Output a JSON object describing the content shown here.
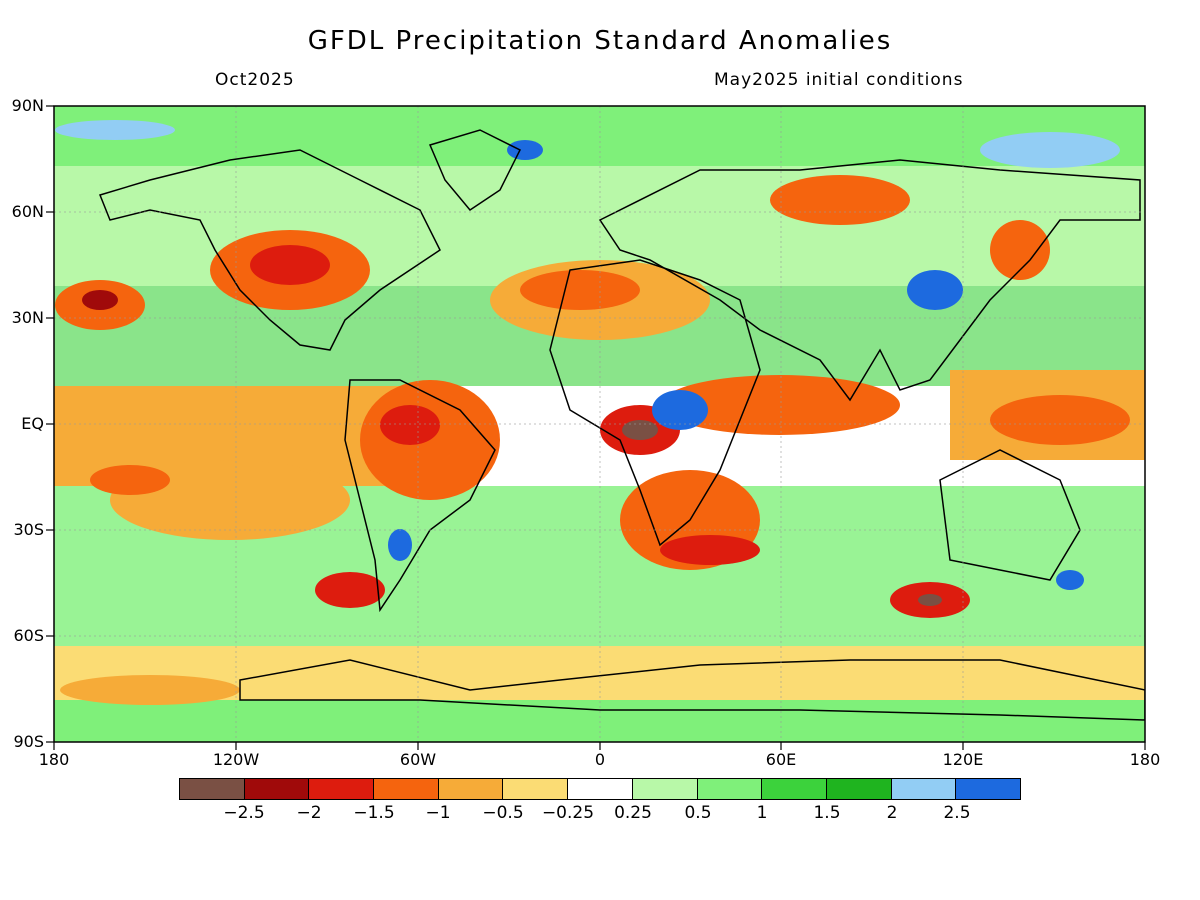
{
  "title": "GFDL Precipitation Standard Anomalies",
  "valid_month": "Oct2025",
  "init_label": "May2025 initial conditions",
  "y_axis_labels": [
    "90N",
    "60N",
    "30N",
    "EQ",
    "30S",
    "60S",
    "90S"
  ],
  "x_axis_labels": [
    "180",
    "120W",
    "60W",
    "0",
    "60E",
    "120E",
    "180"
  ],
  "colorbar": {
    "colors": [
      "#7a5044",
      "#a00a0a",
      "#dd1c0e",
      "#f5640e",
      "#f6ab38",
      "#fbdc74",
      "#ffffff",
      "#b8f8a8",
      "#7ff07a",
      "#3cd23c",
      "#1fb41f",
      "#92cdf4",
      "#1d6adf"
    ],
    "labels": [
      "−2.5",
      "−2",
      "−1.5",
      "−1",
      "−0.5",
      "−0.25",
      "0.25",
      "0.5",
      "1",
      "1.5",
      "2",
      "2.5"
    ]
  },
  "legend_colors": {
    "land_outline": "#000000",
    "gridline": "#999999"
  }
}
